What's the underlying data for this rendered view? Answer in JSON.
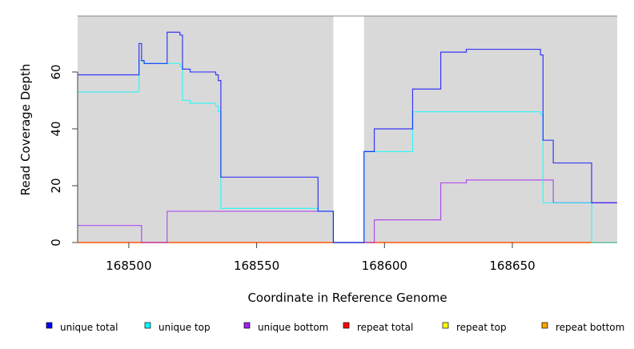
{
  "chart_data": {
    "type": "line",
    "step": true,
    "title": "",
    "xlabel": "Coordinate in Reference Genome",
    "ylabel": "Read Coverage Depth",
    "xlim": [
      168480,
      168691
    ],
    "ylim": [
      0,
      79.7
    ],
    "xticks": [
      168500,
      168550,
      168600,
      168650
    ],
    "yticks": [
      0,
      20,
      40,
      60
    ],
    "shaded_regions": [
      [
        168480,
        168580
      ],
      [
        168592,
        168691
      ]
    ],
    "legend_position": "bottom",
    "series": [
      {
        "name": "unique total",
        "color": "#0000ff",
        "x": [
          168480,
          168504,
          168505,
          168506,
          168515,
          168520,
          168521,
          168524,
          168534,
          168535,
          168536,
          168574,
          168580,
          168592,
          168596,
          168611,
          168622,
          168632,
          168661,
          168662,
          168666,
          168681,
          168691
        ],
        "y": [
          59,
          70,
          64,
          63,
          74,
          73,
          61,
          60,
          59,
          57,
          23,
          11,
          0,
          32,
          40,
          54,
          67,
          68,
          66,
          36,
          28,
          14,
          14
        ]
      },
      {
        "name": "unique top",
        "color": "#00ffff",
        "x": [
          168480,
          168504,
          168506,
          168520,
          168521,
          168524,
          168534,
          168535,
          168536,
          168574,
          168580,
          168592,
          168611,
          168661,
          168662,
          168681,
          168691
        ],
        "y": [
          53,
          64,
          63,
          62,
          50,
          49,
          48,
          46,
          12,
          11,
          0,
          32,
          46,
          45,
          14,
          0,
          0
        ]
      },
      {
        "name": "unique bottom",
        "color": "#a020f0",
        "x": [
          168480,
          168505,
          168515,
          168580,
          168596,
          168622,
          168632,
          168666,
          168691
        ],
        "y": [
          6,
          0,
          11,
          0,
          8,
          21,
          22,
          14,
          14
        ]
      },
      {
        "name": "repeat total",
        "color": "#ff0000",
        "x": [
          168480,
          168691
        ],
        "y": [
          0,
          0
        ]
      },
      {
        "name": "repeat top",
        "color": "#ffff00",
        "x": [
          168480,
          168691
        ],
        "y": [
          0,
          0
        ]
      },
      {
        "name": "repeat bottom",
        "color": "#ffa500",
        "x": [
          168480,
          168691
        ],
        "y": [
          0,
          0
        ]
      }
    ]
  }
}
